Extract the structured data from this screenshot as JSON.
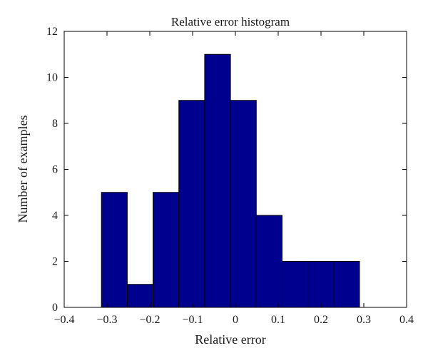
{
  "chart_data": {
    "type": "bar",
    "title": "Relative error histogram",
    "xlabel": "Relative error",
    "ylabel": "Number of examples",
    "xlim": [
      -0.4,
      0.4
    ],
    "ylim": [
      0,
      12
    ],
    "xticks": [
      -0.4,
      -0.3,
      -0.2,
      -0.1,
      0,
      0.1,
      0.2,
      0.3,
      0.4
    ],
    "xtick_labels": [
      "−0.4",
      "−0.3",
      "−0.2",
      "−0.1",
      "0",
      "0.1",
      "0.2",
      "0.3",
      "0.4"
    ],
    "yticks": [
      0,
      2,
      4,
      6,
      8,
      10,
      12
    ],
    "yticklabels": [
      "0",
      "2",
      "4",
      "6",
      "8",
      "10",
      "12"
    ],
    "bin_edges": [
      -0.313,
      -0.2527,
      -0.1924,
      -0.1321,
      -0.0718,
      -0.0115,
      0.0488,
      0.1091,
      0.1694,
      0.2297,
      0.29
    ],
    "bin_centers": [
      -0.283,
      -0.222,
      -0.162,
      -0.102,
      -0.041,
      0.019,
      0.079,
      0.139,
      0.2,
      0.26
    ],
    "counts": [
      5,
      1,
      5,
      9,
      11,
      9,
      4,
      2,
      2,
      2
    ],
    "bar_color": "#00008f",
    "edge_color": "#000000",
    "grid": false
  }
}
